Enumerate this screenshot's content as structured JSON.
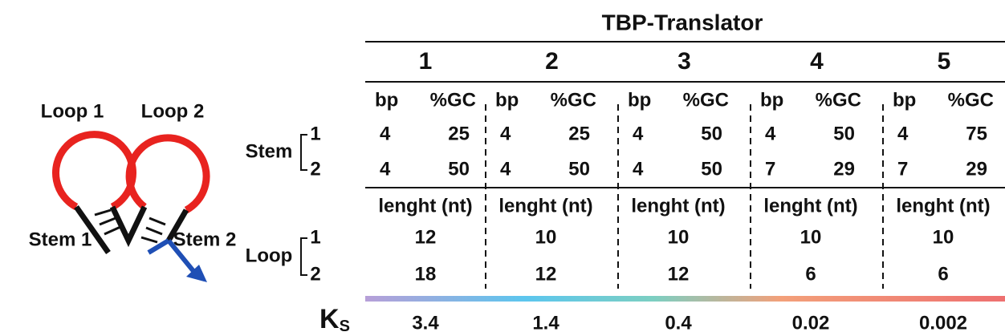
{
  "diagram": {
    "labels": [
      "Loop 1",
      "Loop 2",
      "Stem 1",
      "Stem 2"
    ]
  },
  "table": {
    "title": "TBP-Translator",
    "row_labels": {
      "stem": "Stem",
      "stem_rows": [
        "1",
        "2"
      ],
      "loop": "Loop",
      "loop_rows": [
        "1",
        "2"
      ],
      "ks": "K",
      "ks_sub": "S"
    },
    "columns": [
      {
        "label": "1",
        "color": "#9b7fc6",
        "stem_header": [
          "bp",
          "%GC"
        ],
        "stem": [
          [
            4,
            25
          ],
          [
            4,
            50
          ]
        ],
        "loop_header": "lenght (nt)",
        "loop": [
          12,
          18
        ],
        "ks": 3.4
      },
      {
        "label": "2",
        "color": "#2fb7ea",
        "stem_header": [
          "bp",
          "%GC"
        ],
        "stem": [
          [
            4,
            25
          ],
          [
            4,
            50
          ]
        ],
        "loop_header": "lenght (nt)",
        "loop": [
          10,
          12
        ],
        "ks": 1.4
      },
      {
        "label": "3",
        "color": "#3fb9b5",
        "stem_header": [
          "bp",
          "%GC"
        ],
        "stem": [
          [
            4,
            50
          ],
          [
            4,
            50
          ]
        ],
        "loop_header": "lenght (nt)",
        "loop": [
          10,
          12
        ],
        "ks": 0.4
      },
      {
        "label": "4",
        "color": "#f28d50",
        "stem_header": [
          "bp",
          "%GC"
        ],
        "stem": [
          [
            4,
            50
          ],
          [
            7,
            29
          ]
        ],
        "loop_header": "lenght (nt)",
        "loop": [
          10,
          6
        ],
        "ks": 0.02
      },
      {
        "label": "5",
        "color": "#e9525c",
        "stem_header": [
          "bp",
          "%GC"
        ],
        "stem": [
          [
            4,
            75
          ],
          [
            7,
            29
          ]
        ],
        "loop_header": "lenght (nt)",
        "loop": [
          10,
          6
        ],
        "ks": 0.002
      }
    ]
  }
}
